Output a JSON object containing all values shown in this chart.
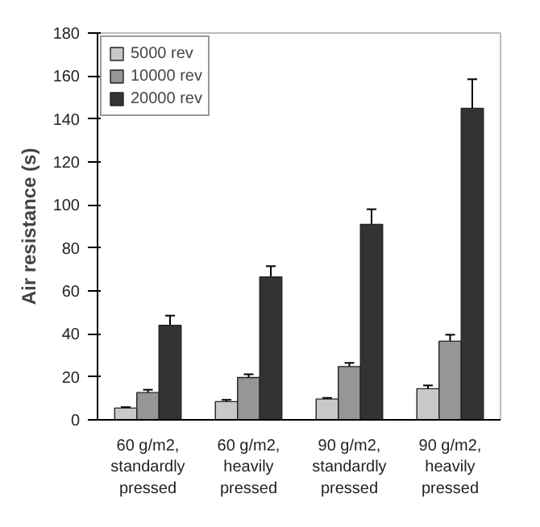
{
  "chart_data": {
    "type": "bar",
    "ylabel": "Air resistance (s)",
    "categories": [
      "60 g/m2,\nstandardly\npressed",
      "60 g/m2,\nheavily\npressed",
      "90 g/m2,\nstandardly\npressed",
      "90 g/m2,\nheavily\npressed"
    ],
    "series": [
      {
        "name": "5000 rev",
        "color": "#c8c8c8",
        "values": [
          5.5,
          8.5,
          9.7,
          14.5
        ],
        "errors": [
          0.4,
          0.8,
          0.5,
          1.5
        ]
      },
      {
        "name": "10000 rev",
        "color": "#969696",
        "values": [
          12.7,
          19.7,
          24.8,
          36.6
        ],
        "errors": [
          1.3,
          1.5,
          1.7,
          3
        ]
      },
      {
        "name": "20000 rev",
        "color": "#333333",
        "values": [
          44,
          66.5,
          91,
          145
        ],
        "errors": [
          4.5,
          5,
          7,
          13.5
        ]
      }
    ],
    "ylim": [
      0,
      180
    ],
    "yticks": [
      0,
      20,
      40,
      60,
      80,
      100,
      120,
      140,
      160,
      180
    ],
    "grid": false,
    "legend": "top left"
  }
}
